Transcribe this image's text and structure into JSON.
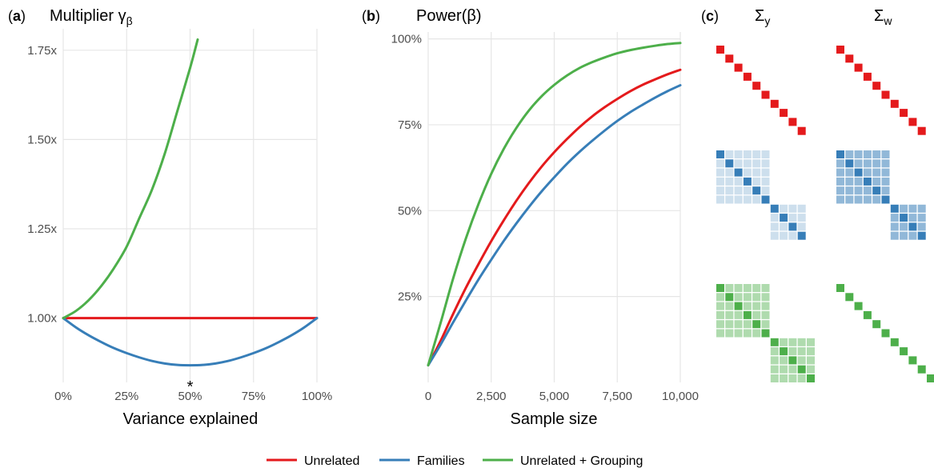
{
  "colors": {
    "unrelated": "#e41a1c",
    "families": "#377eb8",
    "grouping": "#4daf4a"
  },
  "chart_data": [
    {
      "panel": "a",
      "type": "line",
      "title": "Multiplier γβ",
      "title_text": "Multiplier γ",
      "title_subscript": "β",
      "xlabel": "Variance explained",
      "ylabel": "",
      "xlim": [
        0,
        1
      ],
      "ylim": [
        0.82,
        1.81
      ],
      "x_ticks": [
        0,
        0.25,
        0.5,
        0.75,
        1.0
      ],
      "x_tick_labels": [
        "0%",
        "25%",
        "50%",
        "75%",
        "100%"
      ],
      "y_ticks": [
        1.0,
        1.25,
        1.5,
        1.75
      ],
      "y_tick_labels": [
        "1.00x",
        "1.25x",
        "1.50x",
        "1.75x"
      ],
      "grid": true,
      "annotation": {
        "text": "*",
        "x": 0.5,
        "y": 0.82
      },
      "series": [
        {
          "name": "Unrelated",
          "color_key": "unrelated",
          "x": [
            0,
            1
          ],
          "y": [
            1.0,
            1.0
          ]
        },
        {
          "name": "Families",
          "color_key": "families",
          "x": [
            0,
            0.05,
            0.1,
            0.15,
            0.2,
            0.25,
            0.3,
            0.35,
            0.4,
            0.45,
            0.5,
            0.55,
            0.6,
            0.65,
            0.7,
            0.75,
            0.8,
            0.85,
            0.9,
            0.95,
            1.0
          ],
          "y": [
            1.0,
            0.974,
            0.952,
            0.933,
            0.916,
            0.902,
            0.89,
            0.88,
            0.873,
            0.869,
            0.868,
            0.869,
            0.873,
            0.88,
            0.89,
            0.902,
            0.916,
            0.933,
            0.952,
            0.974,
            1.0
          ]
        },
        {
          "name": "Unrelated + Grouping",
          "color_key": "grouping",
          "x": [
            0,
            0.05,
            0.1,
            0.15,
            0.2,
            0.25,
            0.3,
            0.35,
            0.4,
            0.45,
            0.5,
            0.53
          ],
          "y": [
            1.0,
            1.02,
            1.05,
            1.09,
            1.14,
            1.2,
            1.28,
            1.36,
            1.46,
            1.58,
            1.7,
            1.78
          ]
        }
      ]
    },
    {
      "panel": "b",
      "type": "line",
      "title": "Power(β)",
      "xlabel": "Sample size",
      "ylabel": "",
      "xlim": [
        0,
        10000
      ],
      "ylim": [
        0,
        1.02
      ],
      "x_ticks": [
        0,
        2500,
        5000,
        7500,
        10000
      ],
      "x_tick_labels": [
        "0",
        "2,500",
        "5,000",
        "7,500",
        "10,000"
      ],
      "y_ticks": [
        0.25,
        0.5,
        0.75,
        1.0
      ],
      "y_tick_labels": [
        "25%",
        "50%",
        "75%",
        "100%"
      ],
      "grid": true,
      "series": [
        {
          "name": "Unrelated",
          "color_key": "unrelated",
          "x": [
            0,
            500,
            1000,
            1500,
            2000,
            2500,
            3000,
            3500,
            4000,
            4500,
            5000,
            5500,
            6000,
            6500,
            7000,
            7500,
            8000,
            8500,
            9000,
            9500,
            10000
          ],
          "y": [
            0.05,
            0.122,
            0.201,
            0.276,
            0.345,
            0.411,
            0.472,
            0.529,
            0.581,
            0.628,
            0.67,
            0.708,
            0.743,
            0.774,
            0.801,
            0.825,
            0.847,
            0.866,
            0.882,
            0.897,
            0.91
          ]
        },
        {
          "name": "Families",
          "color_key": "families",
          "x": [
            0,
            500,
            1000,
            1500,
            2000,
            2500,
            3000,
            3500,
            4000,
            4500,
            5000,
            5500,
            6000,
            6500,
            7000,
            7500,
            8000,
            8500,
            9000,
            9500,
            10000
          ],
          "y": [
            0.05,
            0.111,
            0.176,
            0.239,
            0.3,
            0.357,
            0.412,
            0.463,
            0.511,
            0.556,
            0.597,
            0.636,
            0.671,
            0.703,
            0.733,
            0.761,
            0.786,
            0.808,
            0.829,
            0.848,
            0.865
          ]
        },
        {
          "name": "Unrelated + Grouping",
          "color_key": "grouping",
          "x": [
            0,
            500,
            1000,
            1500,
            2000,
            2500,
            3000,
            3500,
            4000,
            4500,
            5000,
            5500,
            6000,
            6500,
            7000,
            7500,
            8000,
            8500,
            9000,
            9500,
            10000
          ],
          "y": [
            0.05,
            0.175,
            0.305,
            0.42,
            0.52,
            0.607,
            0.68,
            0.741,
            0.792,
            0.833,
            0.866,
            0.893,
            0.915,
            0.932,
            0.946,
            0.958,
            0.967,
            0.974,
            0.98,
            0.985,
            0.988
          ]
        }
      ]
    },
    {
      "panel": "c",
      "type": "heatmap",
      "column_labels": [
        {
          "symbol": "Σ",
          "subscript": "y"
        },
        {
          "symbol": "Σ",
          "subscript": "w"
        }
      ],
      "n": 10,
      "rows": [
        {
          "color_key": "unrelated",
          "matrices": [
            {
              "diag": 1.0,
              "offdiag": 0,
              "blocks": [
                [
                  0,
                  10
                ]
              ]
            },
            {
              "diag": 1.0,
              "offdiag": 0,
              "blocks": [
                [
                  0,
                  10
                ]
              ]
            }
          ]
        },
        {
          "color_key": "families",
          "matrices": [
            {
              "diag": 1.0,
              "offdiag": 0.25,
              "blocks": [
                [
                  0,
                  6
                ],
                [
                  6,
                  4
                ]
              ]
            },
            {
              "diag": 1.0,
              "offdiag": 0.55,
              "blocks": [
                [
                  0,
                  6
                ],
                [
                  6,
                  4
                ]
              ]
            }
          ]
        },
        {
          "color_key": "grouping",
          "matrices": [
            {
              "diag": 1.0,
              "offdiag": 0.45,
              "blocks": [
                [
                  0,
                  6
                ],
                [
                  6,
                  5
                ]
              ]
            },
            {
              "diag": 1.0,
              "offdiag": 0,
              "blocks": [
                [
                  0,
                  12
                ]
              ]
            }
          ]
        }
      ]
    }
  ],
  "legend": {
    "placement": "bottom",
    "items": [
      {
        "label": "Unrelated",
        "color_key": "unrelated"
      },
      {
        "label": "Families",
        "color_key": "families"
      },
      {
        "label": "Unrelated + Grouping",
        "color_key": "grouping"
      }
    ]
  }
}
